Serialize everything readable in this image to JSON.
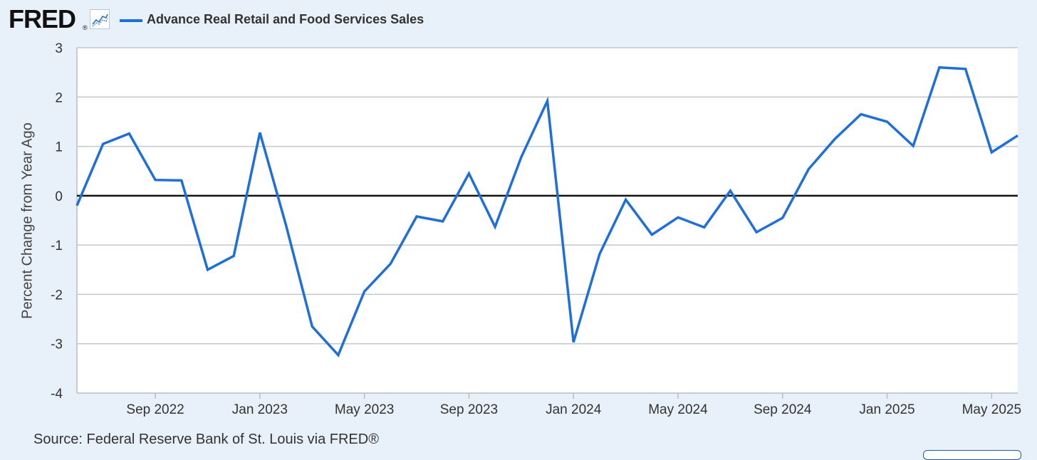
{
  "logo": {
    "text": "FRED",
    "reg": "®"
  },
  "legend": {
    "label": "Advance Real Retail and Food Services Sales",
    "color": "#1e6fd9"
  },
  "source": "Source: Federal Reserve Bank of St. Louis via FRED®",
  "chart_data": {
    "type": "line",
    "title": "Advance Real Retail and Food Services Sales",
    "ylabel": "Percent Change from Year Ago",
    "xlabel": "",
    "ylim": [
      -4,
      3
    ],
    "yticks": [
      3,
      2,
      1,
      0,
      -1,
      -2,
      -3,
      -4
    ],
    "ytick_labels": [
      "3",
      "2",
      "1",
      "0",
      "-1",
      "-2",
      "-3",
      "-4"
    ],
    "x_start": "2022-06",
    "x_end": "2025-06",
    "xticks": [
      {
        "label": "Sep 2022",
        "month_index": 3
      },
      {
        "label": "Jan 2023",
        "month_index": 7
      },
      {
        "label": "May 2023",
        "month_index": 11
      },
      {
        "label": "Sep 2023",
        "month_index": 15
      },
      {
        "label": "Jan 2024",
        "month_index": 19
      },
      {
        "label": "May 2024",
        "month_index": 23
      },
      {
        "label": "Sep 2024",
        "month_index": 27
      },
      {
        "label": "Jan 2025",
        "month_index": 31
      },
      {
        "label": "May 2025",
        "month_index": 35
      }
    ],
    "zero_line": true,
    "grid": true,
    "series": [
      {
        "name": "Advance Real Retail and Food Services Sales",
        "color": "#1e6fd9",
        "x": [
          "2022-06",
          "2022-07",
          "2022-08",
          "2022-09",
          "2022-10",
          "2022-11",
          "2022-12",
          "2023-01",
          "2023-02",
          "2023-03",
          "2023-04",
          "2023-05",
          "2023-06",
          "2023-07",
          "2023-08",
          "2023-09",
          "2023-10",
          "2023-11",
          "2023-12",
          "2024-01",
          "2024-02",
          "2024-03",
          "2024-04",
          "2024-05",
          "2024-06",
          "2024-07",
          "2024-08",
          "2024-09",
          "2024-10",
          "2024-11",
          "2024-12",
          "2025-01",
          "2025-02",
          "2025-03",
          "2025-04",
          "2025-05",
          "2025-06"
        ],
        "values": [
          -0.2,
          1.05,
          1.26,
          0.32,
          0.31,
          -1.5,
          -1.22,
          1.28,
          -0.6,
          -2.65,
          -3.23,
          -1.94,
          -1.38,
          -0.42,
          -0.52,
          0.45,
          -0.63,
          0.78,
          1.92,
          -2.97,
          -1.18,
          -0.08,
          -0.79,
          -0.44,
          -0.64,
          0.1,
          -0.74,
          -0.45,
          0.54,
          1.15,
          1.65,
          1.5,
          1.01,
          2.6,
          2.57,
          0.88,
          1.22
        ]
      }
    ]
  }
}
